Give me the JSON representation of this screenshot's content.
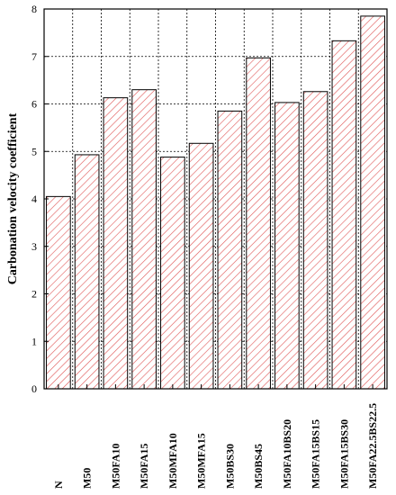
{
  "chart_data": {
    "type": "bar",
    "title": "",
    "xlabel": "",
    "ylabel": "Carbonation velocity coefficient",
    "ylim": [
      0,
      8
    ],
    "yticks": [
      0,
      1,
      2,
      3,
      4,
      5,
      6,
      7,
      8
    ],
    "grid": true,
    "legend": "none",
    "bar_fill": "hatched",
    "bar_color": "#e05555",
    "categories": [
      "N",
      "M50",
      "M50FA10",
      "M50FA15",
      "M50MFA10",
      "M50MFA15",
      "M50BS30",
      "M50BS45",
      "M50FA10BS20",
      "M50FA15BS15",
      "M50FA15BS30",
      "M50FA22.5BS22.5"
    ],
    "values": [
      4.05,
      4.93,
      6.13,
      6.3,
      4.88,
      5.17,
      5.85,
      6.97,
      6.03,
      6.26,
      7.33,
      7.85
    ]
  }
}
